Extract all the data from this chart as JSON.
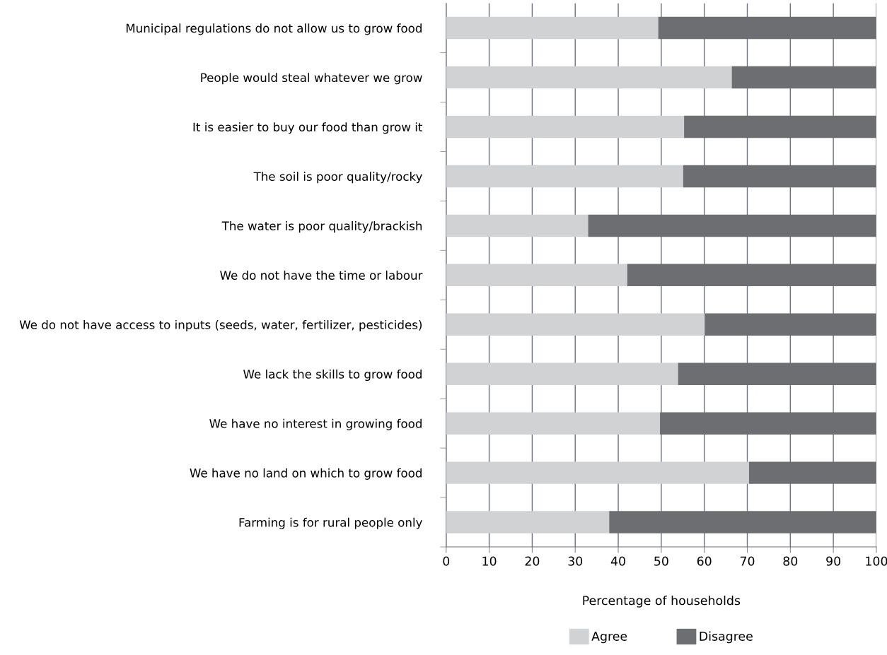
{
  "chart_data": {
    "type": "bar",
    "orientation": "horizontal",
    "stacked": true,
    "categories": [
      "Municipal regulations do not allow us to grow food",
      "People would steal whatever we grow",
      "It is easier to buy our food than grow it",
      "The soil is poor quality/rocky",
      "The water is poor quality/brackish",
      "We do not have the time or labour",
      "We do not have access to inputs (seeds, water, fertilizer, pesticides)",
      "We lack the skills to grow food",
      "We have no interest in growing food",
      "We have no land on which to grow food",
      "Farming is for rural people only"
    ],
    "series": [
      {
        "name": "Agree",
        "color": "#d1d2d4",
        "values": [
          49.3,
          66.4,
          55.3,
          55.1,
          33.0,
          42.1,
          60.1,
          53.9,
          49.7,
          70.4,
          37.9
        ]
      },
      {
        "name": "Disagree",
        "color": "#6d6e71",
        "values": [
          50.7,
          33.6,
          44.7,
          44.9,
          67.0,
          57.9,
          39.9,
          46.1,
          50.3,
          29.6,
          62.1
        ]
      }
    ],
    "xlim": [
      0,
      100
    ],
    "xticks": [
      0,
      10,
      20,
      30,
      40,
      50,
      60,
      70,
      80,
      90,
      100
    ],
    "xlabel": "Percentage of households",
    "grid": "x",
    "legend": "bottom"
  }
}
